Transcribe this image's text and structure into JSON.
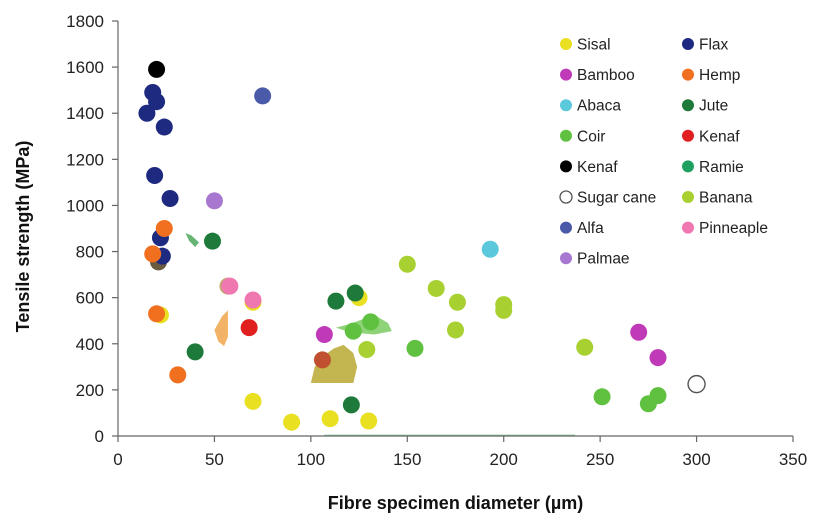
{
  "chart_data": {
    "type": "scatter",
    "xlabel": "Fibre specimen diameter (µm)",
    "ylabel": "Tensile strength (MPa)",
    "xlim": [
      0,
      350
    ],
    "ylim": [
      0,
      1800
    ],
    "xticks": [
      "0",
      "50",
      "100",
      "150",
      "200",
      "250",
      "300",
      "350"
    ],
    "yticks": [
      "0",
      "200",
      "400",
      "600",
      "800",
      "1000",
      "1200",
      "1400",
      "1600",
      "1800"
    ],
    "grid": false,
    "legend_position": "top-right",
    "series": [
      {
        "name": "Sisal",
        "color": "#e8e020",
        "marker": "filled",
        "points": [
          [
            22,
            525
          ],
          [
            70,
            150
          ],
          [
            90,
            60
          ],
          [
            110,
            75
          ],
          [
            130,
            65
          ],
          [
            70,
            580
          ],
          [
            125,
            600
          ]
        ]
      },
      {
        "name": "Flax",
        "color": "#1e2a80",
        "marker": "filled",
        "points": [
          [
            15,
            1400
          ],
          [
            18,
            1490
          ],
          [
            20,
            1450
          ],
          [
            24,
            1340
          ],
          [
            19,
            1130
          ],
          [
            27,
            1030
          ],
          [
            22,
            860
          ],
          [
            23,
            780
          ]
        ]
      },
      {
        "name": "Bamboo",
        "color": "#c03ab8",
        "marker": "filled",
        "points": [
          [
            107,
            440
          ],
          [
            270,
            450
          ],
          [
            280,
            340
          ]
        ]
      },
      {
        "name": "Hemp",
        "color": "#f07020",
        "marker": "filled",
        "points": [
          [
            18,
            790
          ],
          [
            20,
            530
          ],
          [
            24,
            900
          ],
          [
            31,
            265
          ]
        ]
      },
      {
        "name": "Abaca",
        "color": "#5cc8dc",
        "marker": "filled",
        "points": [
          [
            193,
            810
          ]
        ]
      },
      {
        "name": "Jute",
        "color": "#1e7a3a",
        "marker": "filled",
        "points": [
          [
            40,
            365
          ],
          [
            113,
            585
          ],
          [
            123,
            620
          ],
          [
            121,
            135
          ],
          [
            49,
            845
          ]
        ]
      },
      {
        "name": "Coir",
        "color": "#60c040",
        "marker": "filled",
        "points": [
          [
            122,
            455
          ],
          [
            131,
            495
          ],
          [
            154,
            380
          ],
          [
            251,
            170
          ],
          [
            275,
            140
          ],
          [
            280,
            175
          ]
        ]
      },
      {
        "name": "Kenaf",
        "color": "#e02020",
        "marker": "filled",
        "points": [
          [
            68,
            470
          ]
        ]
      },
      {
        "name": "Kenaf",
        "color": "#000000",
        "marker": "filled",
        "points": [
          [
            20,
            1590
          ]
        ]
      },
      {
        "name": "Ramie",
        "color": "#20a060",
        "marker": "filled",
        "points": []
      },
      {
        "name": "Sugar cane",
        "color": "#ffffff",
        "marker": "hollow",
        "points": [
          [
            300,
            225
          ]
        ]
      },
      {
        "name": "Banana",
        "color": "#a8d030",
        "marker": "filled",
        "points": [
          [
            150,
            745
          ],
          [
            165,
            640
          ],
          [
            176,
            580
          ],
          [
            175,
            460
          ],
          [
            200,
            570
          ],
          [
            200,
            545
          ],
          [
            242,
            385
          ],
          [
            129,
            375
          ]
        ]
      },
      {
        "name": "Alfa",
        "color": "#4a5aa8",
        "marker": "filled",
        "points": [
          [
            75,
            1475
          ]
        ]
      },
      {
        "name": "Pinneaple",
        "color": "#f078b0",
        "marker": "filled",
        "points": [
          [
            58,
            650
          ],
          [
            70,
            590
          ]
        ]
      },
      {
        "name": "Palmae",
        "color": "#a878d0",
        "marker": "filled",
        "points": [
          [
            50,
            1020
          ]
        ]
      }
    ]
  },
  "extra_marks": [
    {
      "color": "#c0a870",
      "points": [
        [
          57,
          650
        ]
      ]
    },
    {
      "color": "#c05030",
      "points": [
        [
          106,
          330
        ]
      ]
    },
    {
      "color": "#6a5a40",
      "points": [
        [
          21,
          755
        ]
      ]
    }
  ],
  "regions": [
    {
      "color": "#b8a830",
      "opacity": 0.85,
      "points": [
        [
          100,
          230
        ],
        [
          102,
          300
        ],
        [
          106,
          345
        ],
        [
          112,
          380
        ],
        [
          117,
          395
        ],
        [
          122,
          360
        ],
        [
          124,
          300
        ],
        [
          122,
          230
        ]
      ]
    },
    {
      "color": "#60c040",
      "opacity": 0.7,
      "points": [
        [
          113,
          470
        ],
        [
          120,
          485
        ],
        [
          128,
          510
        ],
        [
          134,
          520
        ],
        [
          140,
          490
        ],
        [
          142,
          455
        ],
        [
          133,
          440
        ],
        [
          120,
          450
        ]
      ]
    },
    {
      "color": "#f0a040",
      "opacity": 0.8,
      "points": [
        [
          50,
          460
        ],
        [
          54,
          520
        ],
        [
          57,
          545
        ],
        [
          57,
          430
        ],
        [
          55,
          390
        ],
        [
          52,
          410
        ]
      ]
    },
    {
      "color": "#40a050",
      "opacity": 0.8,
      "points": [
        [
          35,
          880
        ],
        [
          38,
          870
        ],
        [
          42,
          840
        ],
        [
          40,
          820
        ],
        [
          37,
          845
        ]
      ]
    },
    {
      "color": "#40a050",
      "opacity": 0.6,
      "points": [
        [
          107,
          0
        ],
        [
          140,
          0
        ],
        [
          200,
          0
        ],
        [
          237,
          0
        ],
        [
          237,
          6
        ],
        [
          107,
          6
        ]
      ]
    }
  ]
}
